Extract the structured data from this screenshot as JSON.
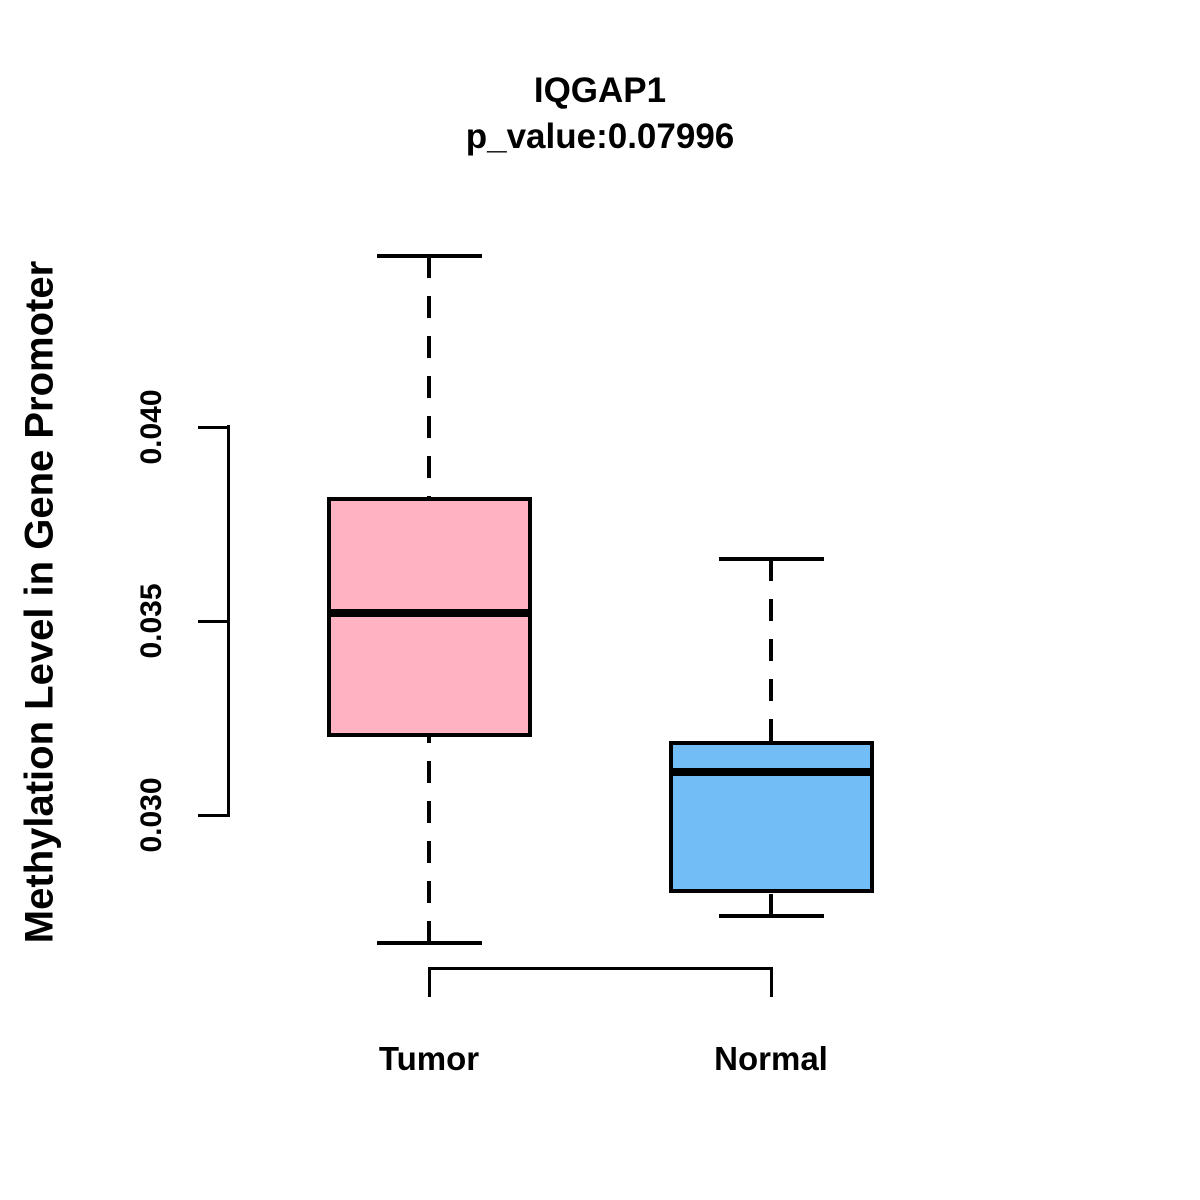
{
  "chart_data": {
    "type": "boxplot",
    "title": "IQGAP1",
    "subtitle": "p_value:0.07996",
    "ylabel": "Methylation Level in Gene Promoter",
    "xlabel": "",
    "grid": false,
    "legend": "none",
    "ylim": [
      0.026,
      0.046
    ],
    "y_axis": {
      "ticks": [
        0.03,
        0.035,
        0.04
      ],
      "tick_labels": [
        "0.030",
        "0.035",
        "0.040"
      ]
    },
    "groups": [
      {
        "label": "Tumor",
        "fill": "#FFB2C1",
        "whisker_low": 0.0267,
        "q1": 0.032,
        "median": 0.0352,
        "q3": 0.0382,
        "whisker_high": 0.0444
      },
      {
        "label": "Normal",
        "fill": "#73BDF7",
        "whisker_low": 0.0274,
        "q1": 0.028,
        "median": 0.0311,
        "q3": 0.0319,
        "whisker_high": 0.0366
      }
    ],
    "colors": {
      "stroke": "#000000",
      "background": "#FFFFFF"
    }
  }
}
